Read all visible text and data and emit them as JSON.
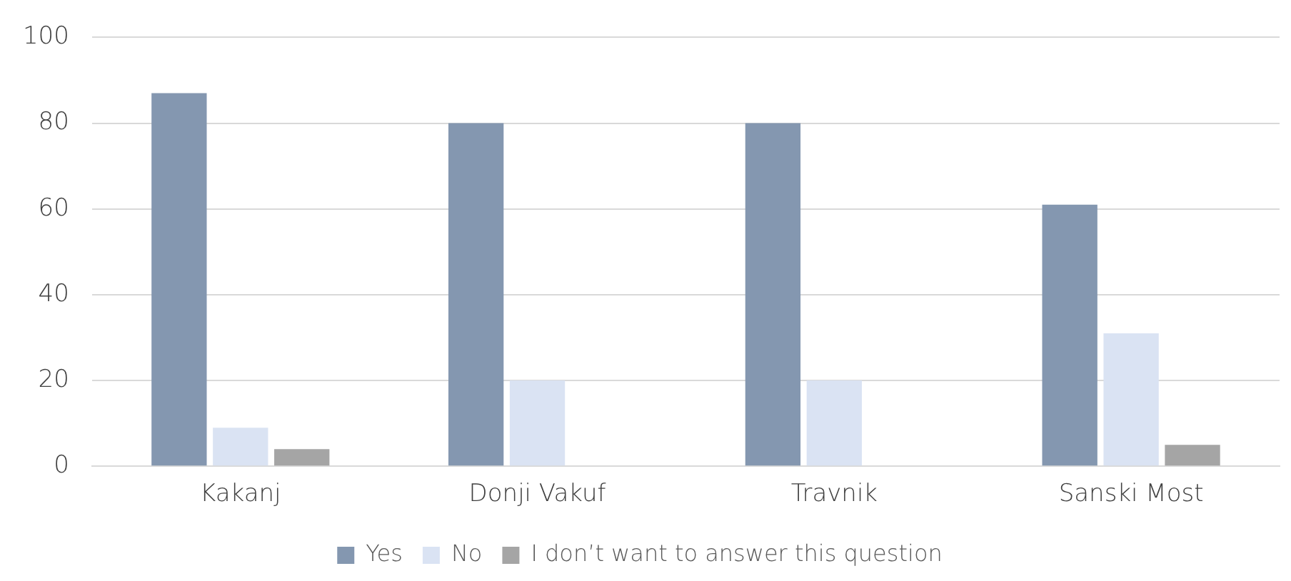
{
  "chart_data": {
    "type": "bar",
    "categories": [
      "Kakanj",
      "Donji Vakuf",
      "Travnik",
      "Sanski Most"
    ],
    "series": [
      {
        "name": "Yes",
        "color": "#8497b0",
        "values": [
          87,
          80,
          80,
          61
        ]
      },
      {
        "name": "No",
        "color": "#dae3f3",
        "values": [
          9,
          20,
          20,
          31
        ]
      },
      {
        "name": "I don’t want to answer this question",
        "color": "#a5a5a5",
        "values": [
          4,
          null,
          null,
          5
        ]
      }
    ],
    "ylim": [
      0,
      100
    ],
    "yticks": [
      0,
      20,
      40,
      60,
      80,
      100
    ],
    "grid": "y",
    "legend": "bottom"
  }
}
